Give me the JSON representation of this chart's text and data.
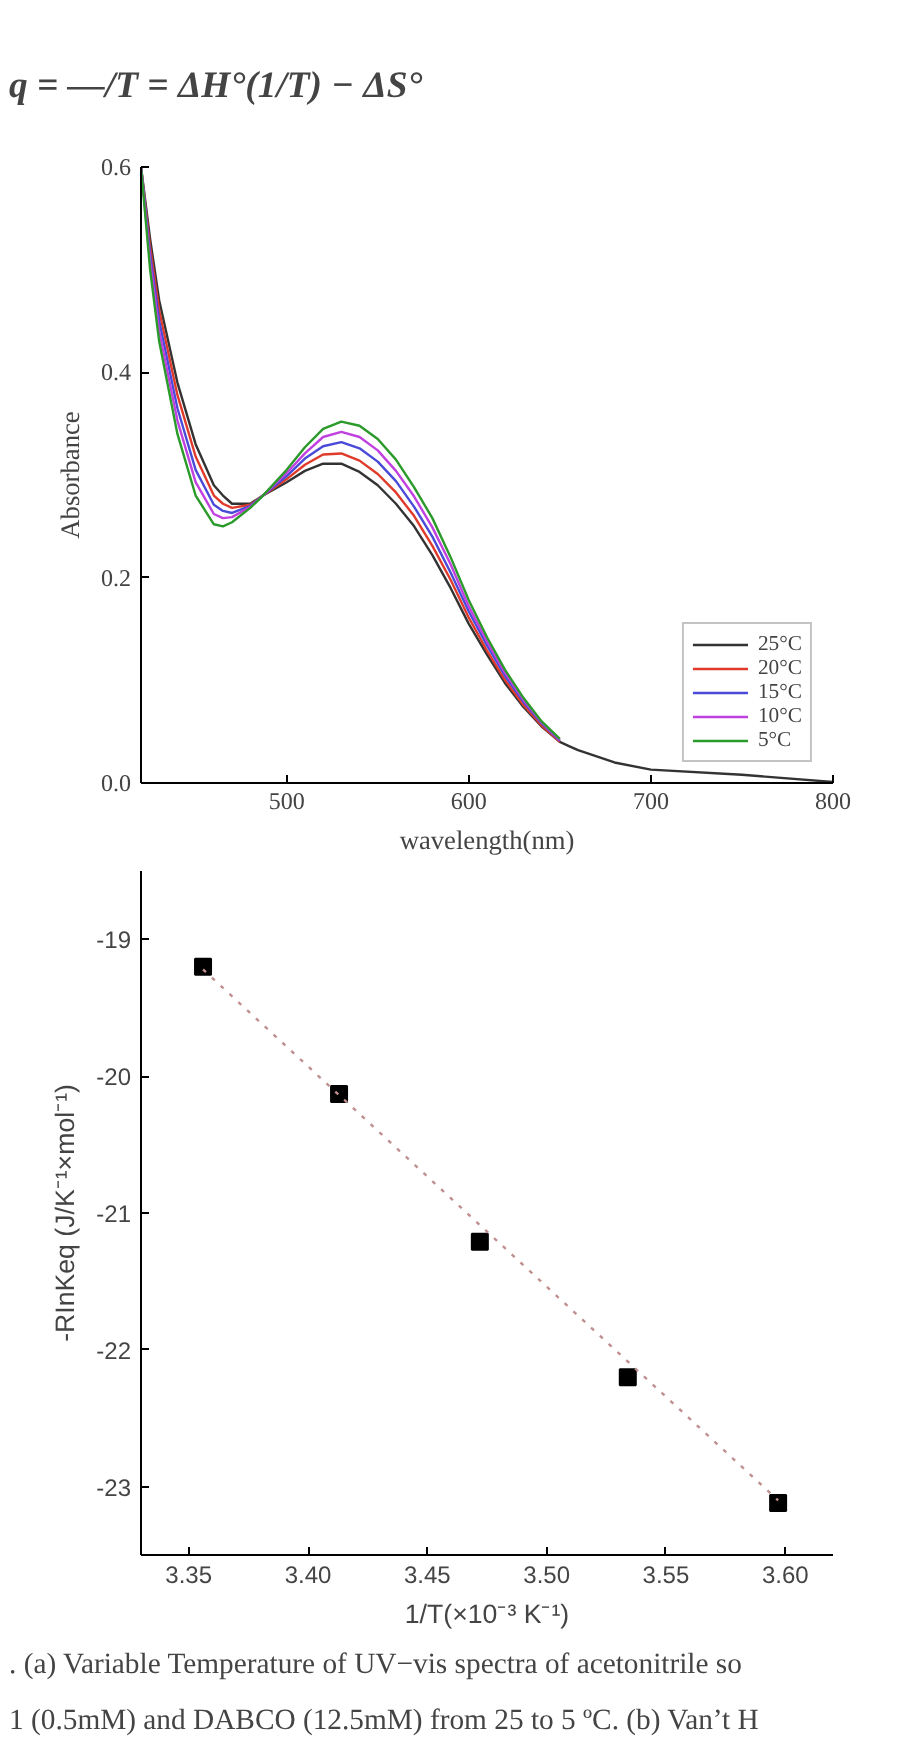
{
  "chart_data": [
    {
      "type": "line",
      "annotations": [
        "q = ―/T = ΔH°(1/T) − ΔS°"
      ],
      "xlabel": "wavelength(nm)",
      "ylabel": "Absorbance",
      "x": [
        420,
        425,
        430,
        440,
        450,
        460,
        465,
        470,
        480,
        487,
        500,
        510,
        520,
        530,
        540,
        550,
        560,
        570,
        580,
        590,
        600,
        610,
        620,
        630,
        640,
        650,
        655,
        660,
        680,
        700,
        750,
        800
      ],
      "series": [
        {
          "name": "25°C",
          "color": "#333333",
          "values": [
            0.6,
            0.53,
            0.47,
            0.39,
            0.33,
            0.29,
            0.28,
            0.272,
            0.272,
            0.28,
            0.293,
            0.304,
            0.311,
            0.311,
            0.303,
            0.29,
            0.272,
            0.25,
            0.222,
            0.19,
            0.155,
            0.125,
            0.097,
            0.074,
            0.055,
            0.04,
            0.036,
            0.032,
            0.02,
            0.013,
            0.008,
            0.001
          ]
        },
        {
          "name": "20°C",
          "color": "#e03a2a",
          "values": [
            0.6,
            0.522,
            0.46,
            0.378,
            0.318,
            0.28,
            0.272,
            0.268,
            0.271,
            0.28,
            0.296,
            0.31,
            0.32,
            0.321,
            0.314,
            0.301,
            0.283,
            0.26,
            0.231,
            0.198,
            0.161,
            0.129,
            0.1,
            0.076,
            0.056,
            0.04,
            null,
            null,
            null,
            null,
            null,
            null
          ]
        },
        {
          "name": "15°C",
          "color": "#4a4ad8",
          "values": [
            0.6,
            0.515,
            0.45,
            0.365,
            0.305,
            0.271,
            0.265,
            0.263,
            0.27,
            0.28,
            0.299,
            0.316,
            0.328,
            0.332,
            0.326,
            0.313,
            0.294,
            0.269,
            0.24,
            0.205,
            0.167,
            0.134,
            0.104,
            0.079,
            0.058,
            0.041,
            null,
            null,
            null,
            null,
            null,
            null
          ]
        },
        {
          "name": "10°C",
          "color": "#c040e0",
          "values": [
            0.6,
            0.508,
            0.44,
            0.353,
            0.293,
            0.262,
            0.258,
            0.259,
            0.269,
            0.28,
            0.302,
            0.321,
            0.337,
            0.342,
            0.337,
            0.324,
            0.304,
            0.279,
            0.249,
            0.213,
            0.172,
            0.138,
            0.107,
            0.081,
            0.059,
            0.042,
            null,
            null,
            null,
            null,
            null,
            null
          ]
        },
        {
          "name": "5°C",
          "color": "#2a9a2a",
          "values": [
            0.6,
            0.5,
            0.43,
            0.34,
            0.28,
            0.252,
            0.25,
            0.254,
            0.268,
            0.28,
            0.305,
            0.327,
            0.345,
            0.352,
            0.348,
            0.335,
            0.315,
            0.288,
            0.258,
            0.22,
            0.178,
            0.142,
            0.11,
            0.083,
            0.06,
            0.043,
            null,
            null,
            null,
            null,
            null,
            null
          ]
        }
      ],
      "xlim": [
        420,
        800
      ],
      "xticks": [
        500,
        600,
        700,
        800
      ],
      "ylim": [
        0,
        0.6
      ],
      "yticks": [
        {
          "value": 0,
          "label": "0.0"
        },
        {
          "value": 0.2,
          "label": "0.2"
        },
        {
          "value": 0.4,
          "label": "0.4"
        },
        {
          "value": 0.6,
          "label": "0.6"
        }
      ],
      "grid": false,
      "legend": "bottom right",
      "marker": "none",
      "line_style": "solid"
    },
    {
      "type": "scatter",
      "xlabel": "1/T(×10⁻³ K⁻¹)",
      "ylabel": "-RInKeq (J/K⁻¹×mol⁻¹)",
      "annotations": [
        ". (a) Variable Temperature of UV−vis spectra of acetonitrile so",
        "1 (0.5mM) and DABCO (12.5mM) from 25 to 5 ºC. (b) Van’t H"
      ],
      "series": [
        {
          "type": "scatter",
          "color": "#000000",
          "marker": "square",
          "x": [
            3.356,
            3.413,
            3.472,
            3.534,
            3.597
          ],
          "values": [
            -19.2,
            -20.13,
            -21.21,
            -22.2,
            -23.12
          ]
        },
        {
          "type": "line",
          "color": "#c09090",
          "line_style": "dotted",
          "marker": "none",
          "x": [
            3.356,
            3.597
          ],
          "values": [
            -19.22,
            -23.1
          ]
        }
      ],
      "xlim": [
        3.33,
        3.62
      ],
      "xticks": [
        {
          "value": 3.35,
          "label": "3.35"
        },
        {
          "value": 3.4,
          "label": "3.40"
        },
        {
          "value": 3.45,
          "label": "3.45"
        },
        {
          "value": 3.5,
          "label": "3.50"
        },
        {
          "value": 3.55,
          "label": "3.55"
        },
        {
          "value": 3.6,
          "label": "3.60"
        }
      ],
      "ylim": [
        -23.5,
        -18.5
      ],
      "yticks": [
        -23,
        -22,
        -21,
        -20,
        -19
      ],
      "grid": false,
      "legend": false
    }
  ]
}
